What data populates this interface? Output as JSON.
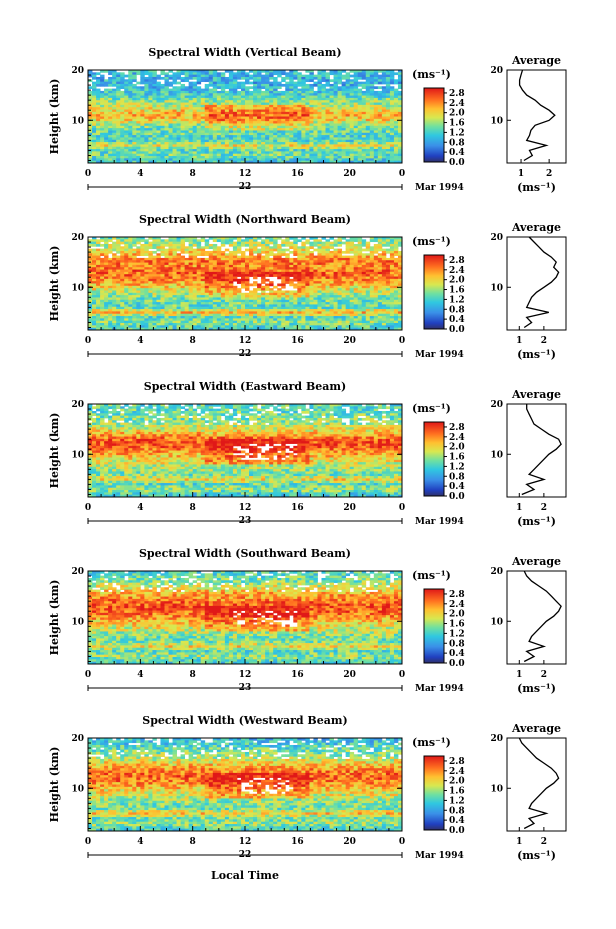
{
  "figure": {
    "xlabel": "Local Time",
    "colorbar_unit": "(ms⁻¹)",
    "profile_title": "Average",
    "profile_xlabel": "(ms⁻¹)",
    "date_suffix": "Mar 1994",
    "ylabel": "Height (km)"
  },
  "chart_data": [
    {
      "type": "heatmap",
      "title": "Spectral Width (Vertical Beam)",
      "xlabel": "",
      "ylabel": "Height (km)",
      "x_ticks": [
        "0",
        "4",
        "8",
        "12",
        "16",
        "20",
        "0"
      ],
      "day_label": "22",
      "date_suffix": "Mar 1994",
      "xlim": [
        0,
        24
      ],
      "y_ticks": [
        "20",
        "10"
      ],
      "ylim": [
        1.5,
        20
      ],
      "colorbar": {
        "unit": "(ms⁻¹)",
        "ticks": [
          "2.8",
          "2.4",
          "2.0",
          "1.6",
          "1.2",
          "0.8",
          "0.4",
          "0.0"
        ],
        "range": [
          0,
          3.0
        ]
      },
      "profile": {
        "title": "Average",
        "xlabel": "(ms⁻¹)",
        "x_ticks": [
          "1",
          "2"
        ],
        "xlim": [
          0.5,
          2.6
        ],
        "heights": [
          2,
          3,
          4,
          5,
          6,
          7,
          8,
          9,
          10,
          11,
          12,
          13,
          14,
          15,
          16,
          17,
          18,
          19,
          20
        ],
        "values": [
          1.1,
          1.4,
          1.3,
          1.9,
          1.2,
          1.3,
          1.35,
          1.5,
          2.0,
          2.2,
          2.0,
          1.7,
          1.5,
          1.2,
          1.05,
          0.95,
          0.95,
          1.0,
          1.05
        ]
      }
    },
    {
      "type": "heatmap",
      "title": "Spectral Width (Northward Beam)",
      "xlabel": "",
      "ylabel": "Height (km)",
      "x_ticks": [
        "0",
        "4",
        "8",
        "12",
        "16",
        "20",
        "0"
      ],
      "day_label": "22",
      "date_suffix": "Mar 1994",
      "xlim": [
        0,
        24
      ],
      "y_ticks": [
        "20",
        "10"
      ],
      "ylim": [
        1.5,
        20
      ],
      "colorbar": {
        "unit": "(ms⁻¹)",
        "ticks": [
          "2.8",
          "2.4",
          "2.0",
          "1.6",
          "1.2",
          "0.8",
          "0.4",
          "0.0"
        ],
        "range": [
          0,
          3.0
        ]
      },
      "profile": {
        "title": "Average",
        "xlabel": "(ms⁻¹)",
        "x_ticks": [
          "1",
          "2"
        ],
        "xlim": [
          0.5,
          2.9
        ],
        "heights": [
          2,
          3,
          4,
          5,
          6,
          7,
          8,
          9,
          10,
          11,
          12,
          13,
          14,
          15,
          16,
          17,
          18,
          19,
          20
        ],
        "values": [
          1.2,
          1.5,
          1.3,
          2.2,
          1.3,
          1.4,
          1.5,
          1.7,
          2.0,
          2.3,
          2.5,
          2.6,
          2.4,
          2.5,
          2.3,
          2.0,
          1.8,
          1.6,
          1.4
        ]
      }
    },
    {
      "type": "heatmap",
      "title": "Spectral Width (Eastward Beam)",
      "xlabel": "",
      "ylabel": "Height (km)",
      "x_ticks": [
        "0",
        "4",
        "8",
        "12",
        "16",
        "20",
        "0"
      ],
      "day_label": "23",
      "date_suffix": "Mar 1994",
      "xlim": [
        0,
        24
      ],
      "y_ticks": [
        "20",
        "10"
      ],
      "ylim": [
        1.5,
        20
      ],
      "colorbar": {
        "unit": "(ms⁻¹)",
        "ticks": [
          "2.8",
          "2.4",
          "2.0",
          "1.6",
          "1.2",
          "0.8",
          "0.4",
          "0.0"
        ],
        "range": [
          0,
          3.0
        ]
      },
      "profile": {
        "title": "Average",
        "xlabel": "(ms⁻¹)",
        "x_ticks": [
          "1",
          "2"
        ],
        "xlim": [
          0.5,
          2.9
        ],
        "heights": [
          2,
          3,
          4,
          5,
          6,
          7,
          8,
          9,
          10,
          11,
          12,
          13,
          14,
          15,
          16,
          17,
          18,
          19,
          20
        ],
        "values": [
          1.1,
          1.6,
          1.3,
          2.0,
          1.4,
          1.6,
          1.8,
          2.0,
          2.2,
          2.5,
          2.7,
          2.6,
          2.2,
          1.9,
          1.6,
          1.5,
          1.4,
          1.3,
          1.3
        ]
      }
    },
    {
      "type": "heatmap",
      "title": "Spectral Width (Southward Beam)",
      "xlabel": "",
      "ylabel": "Height (km)",
      "x_ticks": [
        "0",
        "4",
        "8",
        "12",
        "16",
        "20",
        "0"
      ],
      "day_label": "23",
      "date_suffix": "Mar 1994",
      "xlim": [
        0,
        24
      ],
      "y_ticks": [
        "20",
        "10"
      ],
      "ylim": [
        1.5,
        20
      ],
      "colorbar": {
        "unit": "(ms⁻¹)",
        "ticks": [
          "2.8",
          "2.4",
          "2.0",
          "1.6",
          "1.2",
          "0.8",
          "0.4",
          "0.0"
        ],
        "range": [
          0,
          3.0
        ]
      },
      "profile": {
        "title": "Average",
        "xlabel": "(ms⁻¹)",
        "x_ticks": [
          "1",
          "2"
        ],
        "xlim": [
          0.5,
          2.9
        ],
        "heights": [
          2,
          3,
          4,
          5,
          6,
          7,
          8,
          9,
          10,
          11,
          12,
          13,
          14,
          15,
          16,
          17,
          18,
          19,
          20
        ],
        "values": [
          1.2,
          1.6,
          1.3,
          2.0,
          1.4,
          1.5,
          1.7,
          1.9,
          2.1,
          2.4,
          2.6,
          2.7,
          2.5,
          2.3,
          2.1,
          1.8,
          1.5,
          1.3,
          1.2
        ]
      }
    },
    {
      "type": "heatmap",
      "title": "Spectral Width (Westward Beam)",
      "xlabel": "Local Time",
      "ylabel": "Height (km)",
      "x_ticks": [
        "0",
        "4",
        "8",
        "12",
        "16",
        "20",
        "0"
      ],
      "day_label": "22",
      "date_suffix": "Mar 1994",
      "xlim": [
        0,
        24
      ],
      "y_ticks": [
        "20",
        "10"
      ],
      "ylim": [
        1.5,
        20
      ],
      "colorbar": {
        "unit": "(ms⁻¹)",
        "ticks": [
          "2.8",
          "2.4",
          "2.0",
          "1.6",
          "1.2",
          "0.8",
          "0.4",
          "0.0"
        ],
        "range": [
          0,
          3.0
        ]
      },
      "profile": {
        "title": "Average",
        "xlabel": "(ms⁻¹)",
        "x_ticks": [
          "1",
          "2"
        ],
        "xlim": [
          0.5,
          2.9
        ],
        "heights": [
          2,
          3,
          4,
          5,
          6,
          7,
          8,
          9,
          10,
          11,
          12,
          13,
          14,
          15,
          16,
          17,
          18,
          19,
          20
        ],
        "values": [
          1.2,
          1.6,
          1.4,
          2.1,
          1.4,
          1.5,
          1.7,
          1.9,
          2.1,
          2.4,
          2.6,
          2.5,
          2.3,
          2.0,
          1.7,
          1.5,
          1.3,
          1.1,
          1.0
        ]
      }
    }
  ]
}
